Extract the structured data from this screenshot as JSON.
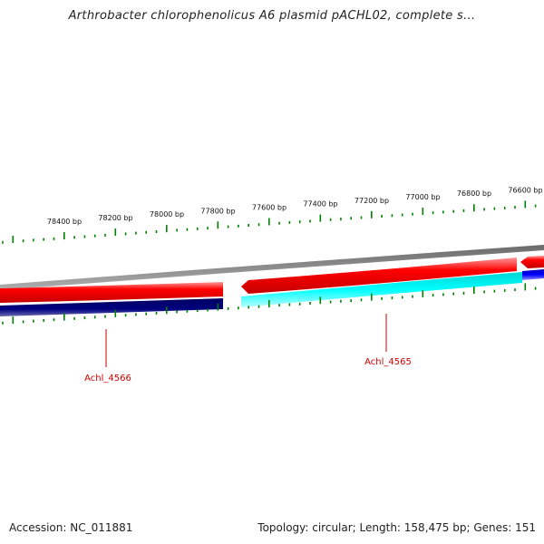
{
  "title": "Arthrobacter chlorophenolicus A6 plasmid pACHL02, complete s...",
  "footer": {
    "accession": "Accession: NC_011881",
    "summary": "Topology: circular; Length: 158,475 bp; Genes: 151"
  },
  "ticks": [
    {
      "label": "78400 bp"
    },
    {
      "label": "78200 bp"
    },
    {
      "label": "78000 bp"
    },
    {
      "label": "77800 bp"
    },
    {
      "label": "77600 bp"
    },
    {
      "label": "77400 bp"
    },
    {
      "label": "77200 bp"
    },
    {
      "label": "77000 bp"
    },
    {
      "label": "76800 bp"
    },
    {
      "label": "76600 bp"
    }
  ],
  "genes": [
    {
      "label": "Achl_4566"
    },
    {
      "label": "Achl_4565"
    }
  ],
  "colors": {
    "forward_strand": "#ff0000",
    "reverse_strand_dark": "#000080",
    "reverse_strand_light": "#00ffff",
    "reverse_strand_blue": "#0000ff",
    "backbone": "#808080",
    "tick": "#008000",
    "gene_label": "#cc0000"
  }
}
